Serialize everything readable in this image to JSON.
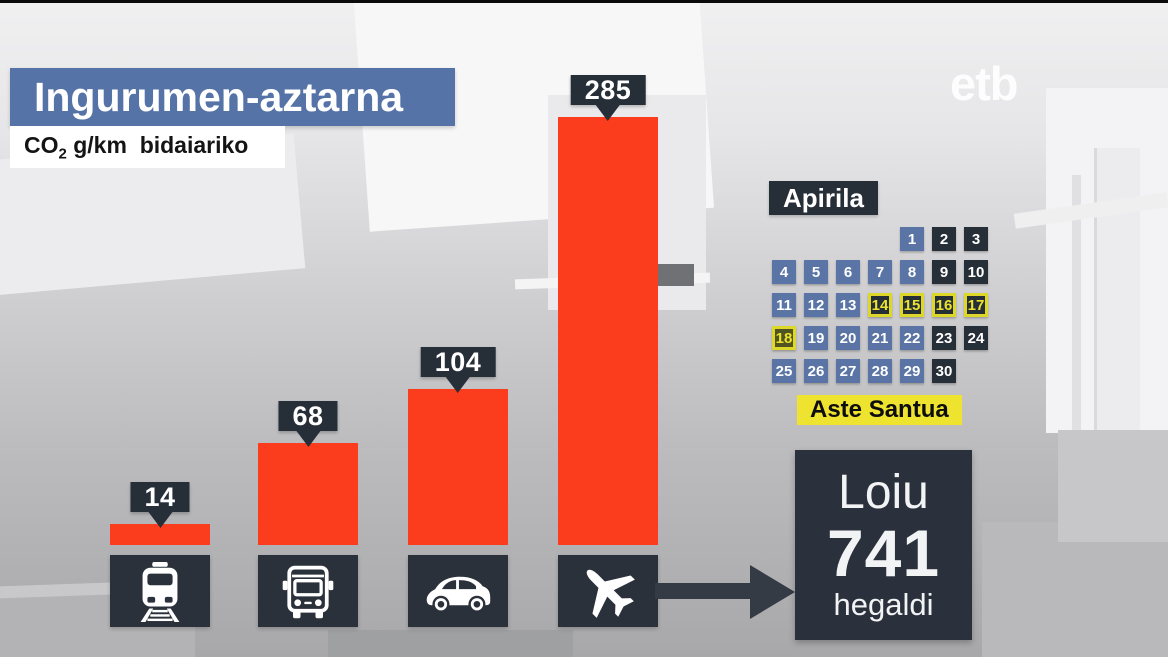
{
  "header": {
    "title": "Ingurumen-aztarna",
    "unit_prefix": "CO",
    "unit_sub": "2",
    "unit_rest": " g/km  bidaiariko"
  },
  "broadcaster": {
    "logo_text": "etb"
  },
  "chart_data": {
    "type": "bar",
    "title": "Ingurumen-aztarna",
    "ylabel": "CO2 g/km bidaiariko (CO2 grams per km per passenger)",
    "categories": [
      "train",
      "bus",
      "car",
      "plane"
    ],
    "category_icons": [
      "train-icon",
      "bus-icon",
      "car-icon",
      "plane-icon"
    ],
    "values": [
      14,
      68,
      104,
      285
    ],
    "bar_color": "#fb3c1d",
    "label_box_color": "#262e38",
    "ylim": [
      0,
      285
    ],
    "grid": false,
    "legend": false
  },
  "calendar": {
    "title": "Apirila",
    "start_col": 5,
    "days": [
      {
        "n": 1,
        "type": "weekday"
      },
      {
        "n": 2,
        "type": "weekend"
      },
      {
        "n": 3,
        "type": "weekend"
      },
      {
        "n": 4,
        "type": "weekday"
      },
      {
        "n": 5,
        "type": "weekday"
      },
      {
        "n": 6,
        "type": "weekday"
      },
      {
        "n": 7,
        "type": "weekday"
      },
      {
        "n": 8,
        "type": "weekday"
      },
      {
        "n": 9,
        "type": "weekend"
      },
      {
        "n": 10,
        "type": "weekend"
      },
      {
        "n": 11,
        "type": "weekday"
      },
      {
        "n": 12,
        "type": "weekday"
      },
      {
        "n": 13,
        "type": "weekday"
      },
      {
        "n": 14,
        "type": "holy"
      },
      {
        "n": 15,
        "type": "holy"
      },
      {
        "n": 16,
        "type": "holy"
      },
      {
        "n": 17,
        "type": "holy"
      },
      {
        "n": 18,
        "type": "holy-alt"
      },
      {
        "n": 19,
        "type": "weekday"
      },
      {
        "n": 20,
        "type": "weekday"
      },
      {
        "n": 21,
        "type": "weekday"
      },
      {
        "n": 22,
        "type": "weekday"
      },
      {
        "n": 23,
        "type": "weekend"
      },
      {
        "n": 24,
        "type": "weekend"
      },
      {
        "n": 25,
        "type": "weekday"
      },
      {
        "n": 26,
        "type": "weekday"
      },
      {
        "n": 27,
        "type": "weekday"
      },
      {
        "n": 28,
        "type": "weekday"
      },
      {
        "n": 29,
        "type": "weekday"
      },
      {
        "n": 30,
        "type": "weekend"
      }
    ],
    "legend_label": "Aste Santua",
    "colors": {
      "weekday": "#5a74a5",
      "weekend": "#262e38",
      "holiday_border": "#dcd728",
      "holiday_text": "#ece32d",
      "holiday_monday_bg": "#4f5420",
      "legend_bg": "#eee32f"
    }
  },
  "callout": {
    "place": "Loiu",
    "value": "741",
    "unit": "hegaldi"
  },
  "colors": {
    "title_bg": "#5673a8",
    "bar_red": "#fb3c1d",
    "dark_box": "#262e38",
    "icon_box": "#2b313b",
    "arrow": "#343b45"
  }
}
